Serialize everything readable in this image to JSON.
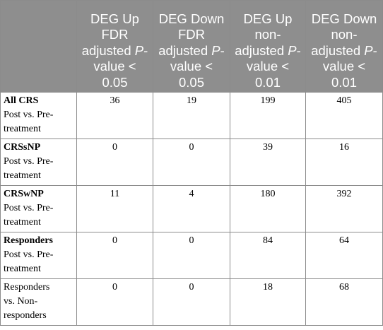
{
  "headers": [
    {
      "lines": []
    },
    {
      "lines": [
        [
          "DEG Up"
        ],
        [
          "FDR"
        ],
        [
          "adjusted ",
          {
            "i": "P"
          },
          "-"
        ],
        [
          "value <"
        ],
        [
          "0.05"
        ]
      ]
    },
    {
      "lines": [
        [
          "DEG Down"
        ],
        [
          "FDR"
        ],
        [
          "adjusted ",
          {
            "i": "P"
          },
          "-"
        ],
        [
          "value <"
        ],
        [
          "0.05"
        ]
      ]
    },
    {
      "lines": [
        [
          "DEG Up"
        ],
        [
          "non-"
        ],
        [
          "adjusted ",
          {
            "i": "P"
          },
          "-"
        ],
        [
          "value <"
        ],
        [
          "0.01"
        ]
      ]
    },
    {
      "lines": [
        [
          "DEG Down"
        ],
        [
          "non-"
        ],
        [
          "adjusted ",
          {
            "i": "P"
          },
          "-"
        ],
        [
          "value <"
        ],
        [
          "0.01"
        ]
      ]
    }
  ],
  "rows": [
    {
      "title": "All CRS",
      "title_bold": true,
      "sub_lines": [
        "Post vs. Pre-",
        "treatment"
      ],
      "values": [
        "36",
        "19",
        "199",
        "405"
      ]
    },
    {
      "title": "CRSsNP",
      "title_bold": true,
      "sub_lines": [
        "Post vs. Pre-",
        "treatment"
      ],
      "values": [
        "0",
        "0",
        "39",
        "16"
      ]
    },
    {
      "title": "CRSwNP",
      "title_bold": true,
      "sub_lines": [
        "Post vs. Pre-",
        "treatment"
      ],
      "values": [
        "11",
        "4",
        "180",
        "392"
      ]
    },
    {
      "title": "Responders",
      "title_bold": true,
      "sub_lines": [
        "Post vs. Pre-",
        "treatment"
      ],
      "values": [
        "0",
        "0",
        "84",
        "64"
      ]
    },
    {
      "title": "Responders",
      "title_bold": false,
      "sub_lines": [
        "vs. Non-",
        "responders"
      ],
      "values": [
        "0",
        "0",
        "18",
        "68"
      ]
    }
  ]
}
